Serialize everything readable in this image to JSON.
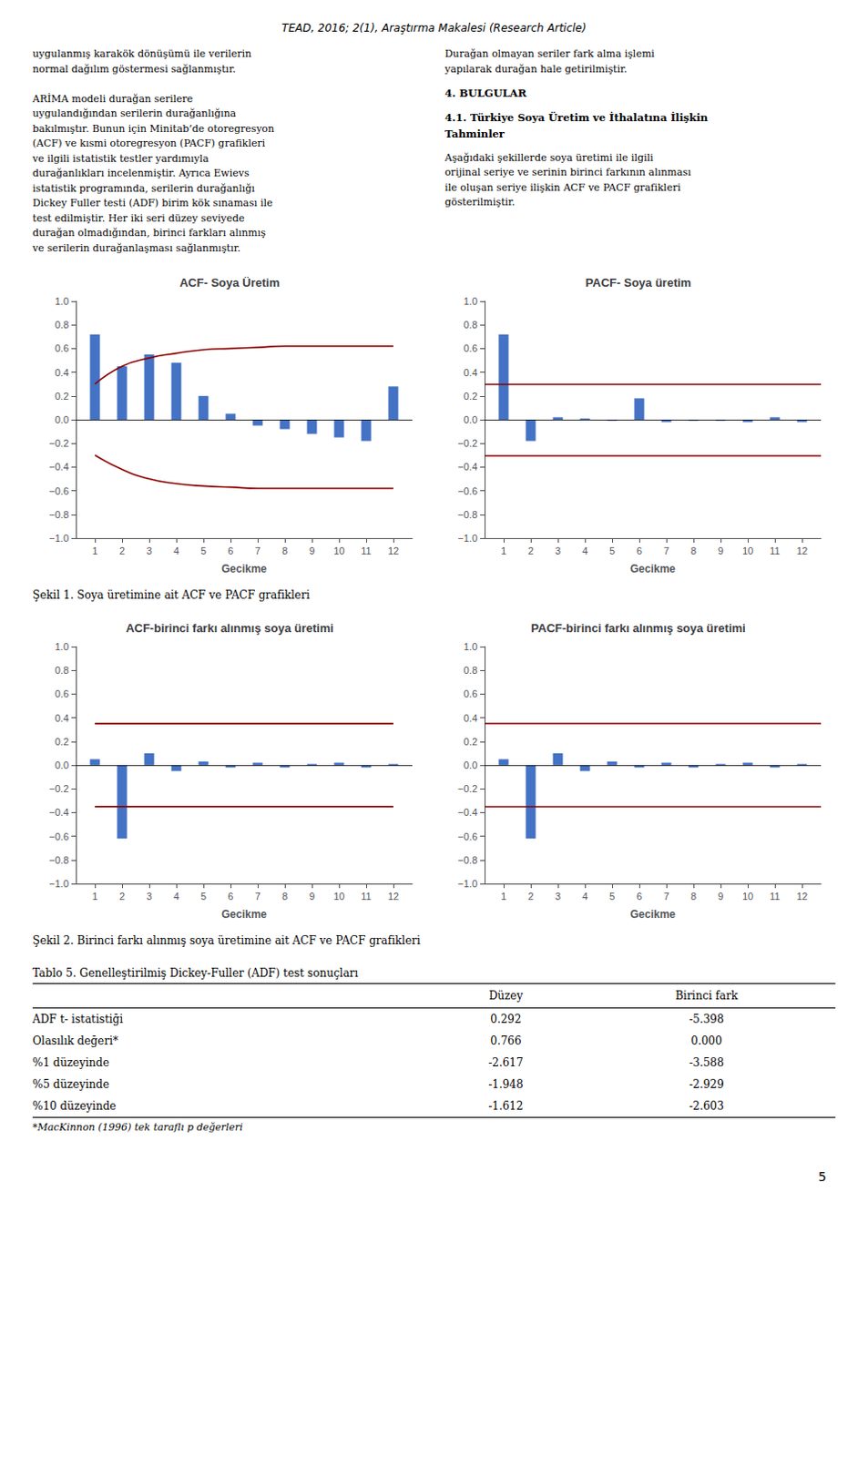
{
  "header": "TEAD, 2016; 2(1), Araştırma Makalesi (Research Article)",
  "text_left": "uygulanmış karakök dönüşümü ile verilerin\nnormal dağılım göstermesi sağlanmıştır.\n\nARİMA modeli durağan serilere\nuygulandığından serilerin durağanlığına\nbakılmıştır. Bunun için Minitab’de otoregresyon\n(ACF) ve kısmi otoregresyon (PACF) grafikleri\nve ilgili istatistik testler yardımıyla\ndurağanlıkları incelenmiştir. Ayrıca Ewievs\nistatistik programında, serilerin durağanlığı\nDickey Fuller testi (ADF) birim kök sınaması ile\ntest edilmiştir. Her iki seri düzey seviyede\ndurağan olmadığından, birinci farkları alınmış\nve serilerin durağanlaşması sağlanmıştır.",
  "text_right_intro": "Durağan olmayan seriler fark alma işlemi\nyapılarak durağan hale getirilmiştir.",
  "headings": [
    "4. BULGULAR",
    "4.1. Türkiye Soya Üretim ve İthalatına İlişkin\nTahminler"
  ],
  "text_right_body": "Aşağıdaki şekillerde soya üretimi ile ilgili\norijinal seriye ve serinin birinci farkının alınması\nile oluşan seriye ilişkin ACF ve PACF grafikleri\ngösterilmiştir.",
  "captions": [
    "Şekil 1. Soya üretimine ait ACF ve PACF grafikleri",
    "Şekil 2. Birinci farkı alınmış soya üretimine ait ACF ve PACF grafikleri"
  ],
  "chart_data": [
    {
      "type": "bar",
      "title": "ACF- Soya Üretim",
      "xlabel": "Gecikme",
      "x": [
        1,
        2,
        3,
        4,
        5,
        6,
        7,
        8,
        9,
        10,
        11,
        12
      ],
      "series": [
        {
          "type": "bar",
          "color": "#4472c4",
          "values": [
            0.72,
            0.45,
            0.55,
            0.48,
            0.2,
            0.05,
            -0.05,
            -0.08,
            -0.12,
            -0.15,
            -0.18,
            0.28
          ]
        },
        {
          "type": "line",
          "color": "#8b0000",
          "values": [
            0.3,
            0.45,
            0.52,
            0.56,
            0.59,
            0.6,
            0.61,
            0.62,
            0.62,
            0.62,
            0.62,
            0.62
          ]
        },
        {
          "type": "line",
          "color": "#8b0000",
          "values": [
            -0.3,
            -0.42,
            -0.5,
            -0.54,
            -0.56,
            -0.57,
            -0.58,
            -0.58,
            -0.58,
            -0.58,
            -0.58,
            -0.58
          ]
        }
      ],
      "hlines": [
        {
          "value": 0,
          "color": "black"
        }
      ],
      "xlim": [
        0.3,
        12.7
      ],
      "xticks": [
        1,
        2,
        3,
        4,
        5,
        6,
        7,
        8,
        9,
        10,
        11,
        12
      ],
      "ylim": [
        -1,
        1
      ],
      "yticks": [
        {
          "value": -1,
          "label": "−1.0"
        },
        {
          "value": -0.8,
          "label": "−0.8"
        },
        {
          "value": -0.6,
          "label": "−0.6"
        },
        {
          "value": -0.4,
          "label": "−0.4"
        },
        {
          "value": -0.2,
          "label": "−0.2"
        },
        {
          "value": 0,
          "label": "0.0"
        },
        0.2,
        0.4,
        0.6,
        0.8,
        {
          "value": 1,
          "label": "1.0"
        }
      ],
      "grid": false
    },
    {
      "type": "bar",
      "title": "PACF- Soya üretim",
      "xlabel": "Gecikme",
      "x": [
        1,
        2,
        3,
        4,
        5,
        6,
        7,
        8,
        9,
        10,
        11,
        12
      ],
      "series": [
        {
          "type": "bar",
          "color": "#4472c4",
          "values": [
            0.72,
            -0.18,
            0.02,
            0.01,
            -0.01,
            0.18,
            -0.02,
            -0.01,
            -0.01,
            -0.02,
            0.02,
            -0.02
          ]
        }
      ],
      "hlines": [
        {
          "value": 0.3,
          "color": "#8b0000"
        },
        {
          "value": -0.3,
          "color": "#8b0000"
        },
        {
          "value": 0,
          "color": "black"
        }
      ],
      "xlim": [
        0.3,
        12.7
      ],
      "xticks": [
        1,
        2,
        3,
        4,
        5,
        6,
        7,
        8,
        9,
        10,
        11,
        12
      ],
      "ylim": [
        -1,
        1
      ],
      "yticks": [
        {
          "value": -1,
          "label": "−1.0"
        },
        {
          "value": -0.8,
          "label": "−0.8"
        },
        {
          "value": -0.6,
          "label": "−0.6"
        },
        {
          "value": -0.4,
          "label": "−0.4"
        },
        {
          "value": -0.2,
          "label": "−0.2"
        },
        {
          "value": 0,
          "label": "0.0"
        },
        0.2,
        0.4,
        0.6,
        0.8,
        {
          "value": 1,
          "label": "1.0"
        }
      ],
      "grid": false
    },
    {
      "type": "bar",
      "title": "ACF-birinci farkı alınmış soya üretimi",
      "xlabel": "Gecikme",
      "x": [
        1,
        2,
        3,
        4,
        5,
        6,
        7,
        8,
        9,
        10,
        11,
        12
      ],
      "series": [
        {
          "type": "bar",
          "color": "#4472c4",
          "values": [
            0.05,
            -0.62,
            0.1,
            -0.05,
            0.03,
            -0.02,
            0.02,
            -0.02,
            0.01,
            0.02,
            -0.02,
            0.01
          ]
        },
        {
          "type": "line",
          "color": "#8b0000",
          "values": [
            0.35,
            0.35,
            0.35,
            0.35,
            0.35,
            0.35,
            0.35,
            0.35,
            0.35,
            0.35,
            0.35,
            0.35
          ]
        },
        {
          "type": "line",
          "color": "#8b0000",
          "values": [
            -0.35,
            -0.35,
            -0.35,
            -0.35,
            -0.35,
            -0.35,
            -0.35,
            -0.35,
            -0.35,
            -0.35,
            -0.35,
            -0.35
          ]
        }
      ],
      "hlines": [
        {
          "value": 0,
          "color": "black"
        }
      ],
      "xlim": [
        0.3,
        12.7
      ],
      "xticks": [
        1,
        2,
        3,
        4,
        5,
        6,
        7,
        8,
        9,
        10,
        11,
        12
      ],
      "ylim": [
        -1,
        1
      ],
      "yticks": [
        {
          "value": -1,
          "label": "−1.0"
        },
        {
          "value": -0.8,
          "label": "−0.8"
        },
        {
          "value": -0.6,
          "label": "−0.6"
        },
        {
          "value": -0.4,
          "label": "−0.4"
        },
        {
          "value": -0.2,
          "label": "−0.2"
        },
        {
          "value": 0,
          "label": "0.0"
        },
        0.2,
        0.4,
        0.6,
        0.8,
        {
          "value": 1,
          "label": "1.0"
        }
      ],
      "grid": false
    },
    {
      "type": "bar",
      "title": "PACF-birinci farkı alınmış soya üretimi",
      "xlabel": "Gecikme",
      "x": [
        1,
        2,
        3,
        4,
        5,
        6,
        7,
        8,
        9,
        10,
        11,
        12
      ],
      "series": [
        {
          "type": "bar",
          "color": "#4472c4",
          "values": [
            0.05,
            -0.62,
            0.1,
            -0.05,
            0.03,
            -0.02,
            0.02,
            -0.02,
            0.01,
            0.02,
            -0.02,
            0.01
          ]
        }
      ],
      "hlines": [
        {
          "value": 0.35,
          "color": "#8b0000"
        },
        {
          "value": -0.35,
          "color": "#8b0000"
        },
        {
          "value": 0,
          "color": "black"
        }
      ],
      "xlim": [
        0.3,
        12.7
      ],
      "xticks": [
        1,
        2,
        3,
        4,
        5,
        6,
        7,
        8,
        9,
        10,
        11,
        12
      ],
      "ylim": [
        -1,
        1
      ],
      "yticks": [
        {
          "value": -1,
          "label": "−1.0"
        },
        {
          "value": -0.8,
          "label": "−0.8"
        },
        {
          "value": -0.6,
          "label": "−0.6"
        },
        {
          "value": -0.4,
          "label": "−0.4"
        },
        {
          "value": -0.2,
          "label": "−0.2"
        },
        {
          "value": 0,
          "label": "0.0"
        },
        0.2,
        0.4,
        0.6,
        0.8,
        {
          "value": 1,
          "label": "1.0"
        }
      ],
      "grid": false
    }
  ],
  "table": {
    "title": "Tablo 5. Genelleştirilmiş Dickey-Fuller (ADF) test sonuçları",
    "rows": [
      "ADF t- istatistiği",
      "Olasılık değeri*",
      "%1 düzeyinde",
      "%5 düzeyinde",
      "%10 düzeyinde"
    ],
    "columns": [
      {
        "name": "Düzey",
        "values": [
          0.292,
          0.766,
          -2.617,
          -1.948,
          -1.612
        ],
        "value_labels": [
          "0.292",
          "0.766",
          "-2.617",
          "-1.948",
          "-1.612"
        ]
      },
      {
        "name": "Birinci fark",
        "values": [
          -5.398,
          0.0,
          -3.588,
          -2.929,
          -2.603
        ],
        "value_labels": [
          "-5.398",
          "0.000",
          "-3.588",
          "-2.929",
          "-2.603"
        ]
      }
    ],
    "footnote": "*MacKinnon (1996) tek taraflı p değerleri"
  },
  "page_number": 5
}
